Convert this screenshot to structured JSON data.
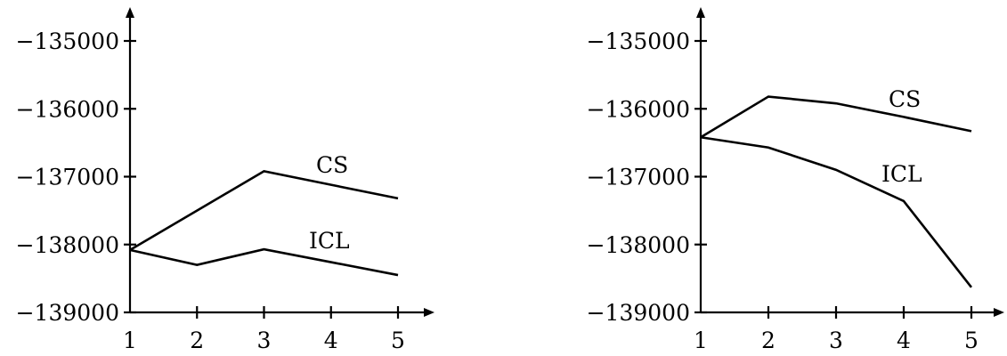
{
  "chart_data": [
    {
      "type": "line",
      "x": [
        1,
        2,
        3,
        4,
        5
      ],
      "xticks": [
        "1",
        "2",
        "3",
        "4",
        "5"
      ],
      "yticks": [
        "−135000",
        "−136000",
        "−137000",
        "−138000",
        "−139000"
      ],
      "ylim": [
        -139000,
        -135000
      ],
      "grid": false,
      "series": [
        {
          "name": "CS",
          "values": [
            -138080,
            -137500,
            -136920,
            -137120,
            -137320
          ]
        },
        {
          "name": "ICL",
          "values": [
            -138080,
            -138300,
            -138070,
            -138260,
            -138450
          ]
        }
      ]
    },
    {
      "type": "line",
      "x": [
        1,
        2,
        3,
        4,
        5
      ],
      "xticks": [
        "1",
        "2",
        "3",
        "4",
        "5"
      ],
      "yticks": [
        "−135000",
        "−136000",
        "−137000",
        "−138000",
        "−139000"
      ],
      "ylim": [
        -139000,
        -135000
      ],
      "grid": false,
      "series": [
        {
          "name": "CS",
          "values": [
            -136420,
            -135820,
            -135920,
            -136120,
            -136330
          ]
        },
        {
          "name": "ICL",
          "values": [
            -136420,
            -136570,
            -136900,
            -137360,
            -138630
          ]
        }
      ]
    }
  ]
}
